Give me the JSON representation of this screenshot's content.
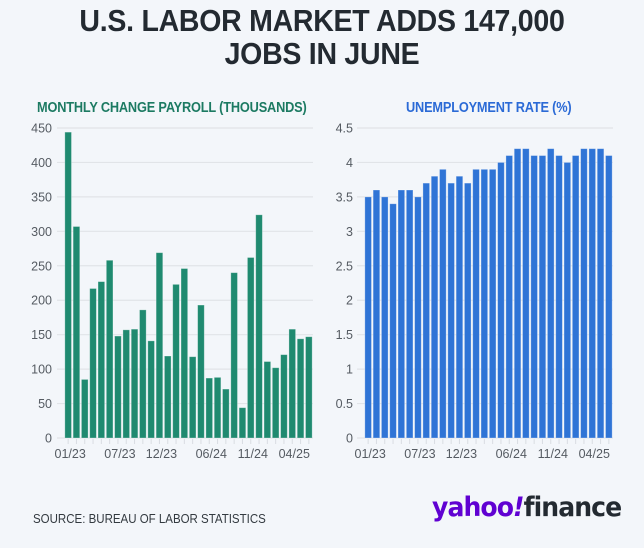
{
  "header": {
    "title_line1": "U.S. LABOR MARKET ADDS 147,000",
    "title_line2": "JOBS IN JUNE"
  },
  "footer": {
    "source": "SOURCE: BUREAU OF LABOR STATISTICS",
    "logo_part1": "yahoo",
    "logo_bang": "!",
    "logo_part2": "finance"
  },
  "colors": {
    "payroll": "#1f8a70",
    "unemployment": "#2f74d6",
    "logo_purple": "#6001d2"
  },
  "chart_data": [
    {
      "type": "bar",
      "title": "MONTHLY CHANGE PAYROLL (THOUSANDS)",
      "xlabel": "",
      "ylabel": "",
      "ylim": [
        0,
        450
      ],
      "yticks": [
        0,
        50,
        100,
        150,
        200,
        250,
        300,
        350,
        400,
        450
      ],
      "grid": true,
      "x_tick_labels": [
        {
          "index": 0,
          "label": "01/23"
        },
        {
          "index": 6,
          "label": "07/23"
        },
        {
          "index": 11,
          "label": "12/23"
        },
        {
          "index": 17,
          "label": "06/24"
        },
        {
          "index": 22,
          "label": "11/24"
        },
        {
          "index": 27,
          "label": "04/25"
        }
      ],
      "categories": [
        "01/23",
        "02/23",
        "03/23",
        "04/23",
        "05/23",
        "06/23",
        "07/23",
        "08/23",
        "09/23",
        "10/23",
        "11/23",
        "12/23",
        "01/24",
        "02/24",
        "03/24",
        "04/24",
        "05/24",
        "06/24",
        "07/24",
        "08/24",
        "09/24",
        "10/24",
        "11/24",
        "12/24",
        "01/25",
        "02/25",
        "03/25",
        "04/25",
        "05/25",
        "06/25"
      ],
      "values": [
        444,
        307,
        85,
        217,
        227,
        258,
        148,
        157,
        158,
        186,
        141,
        269,
        119,
        223,
        246,
        118,
        193,
        87,
        88,
        71,
        240,
        44,
        262,
        324,
        111,
        102,
        121,
        158,
        144,
        147
      ]
    },
    {
      "type": "bar",
      "title": "UNEMPLOYMENT RATE (%)",
      "xlabel": "",
      "ylabel": "",
      "ylim": [
        0,
        4.5
      ],
      "yticks": [
        0,
        0.5,
        1,
        1.5,
        2,
        2.5,
        3,
        3.5,
        4,
        4.5
      ],
      "grid": true,
      "x_tick_labels": [
        {
          "index": 0,
          "label": "01/23"
        },
        {
          "index": 6,
          "label": "07/23"
        },
        {
          "index": 11,
          "label": "12/23"
        },
        {
          "index": 17,
          "label": "06/24"
        },
        {
          "index": 22,
          "label": "11/24"
        },
        {
          "index": 27,
          "label": "04/25"
        }
      ],
      "categories": [
        "01/23",
        "02/23",
        "03/23",
        "04/23",
        "05/23",
        "06/23",
        "07/23",
        "08/23",
        "09/23",
        "10/23",
        "11/23",
        "12/23",
        "01/24",
        "02/24",
        "03/24",
        "04/24",
        "05/24",
        "06/24",
        "07/24",
        "08/24",
        "09/24",
        "10/24",
        "11/24",
        "12/24",
        "01/25",
        "02/25",
        "03/25",
        "04/25",
        "05/25",
        "06/25"
      ],
      "values": [
        3.5,
        3.6,
        3.5,
        3.4,
        3.6,
        3.6,
        3.5,
        3.7,
        3.8,
        3.9,
        3.7,
        3.8,
        3.7,
        3.9,
        3.9,
        3.9,
        4.0,
        4.1,
        4.2,
        4.2,
        4.1,
        4.1,
        4.2,
        4.1,
        4.0,
        4.1,
        4.2,
        4.2,
        4.2,
        4.1
      ]
    }
  ]
}
